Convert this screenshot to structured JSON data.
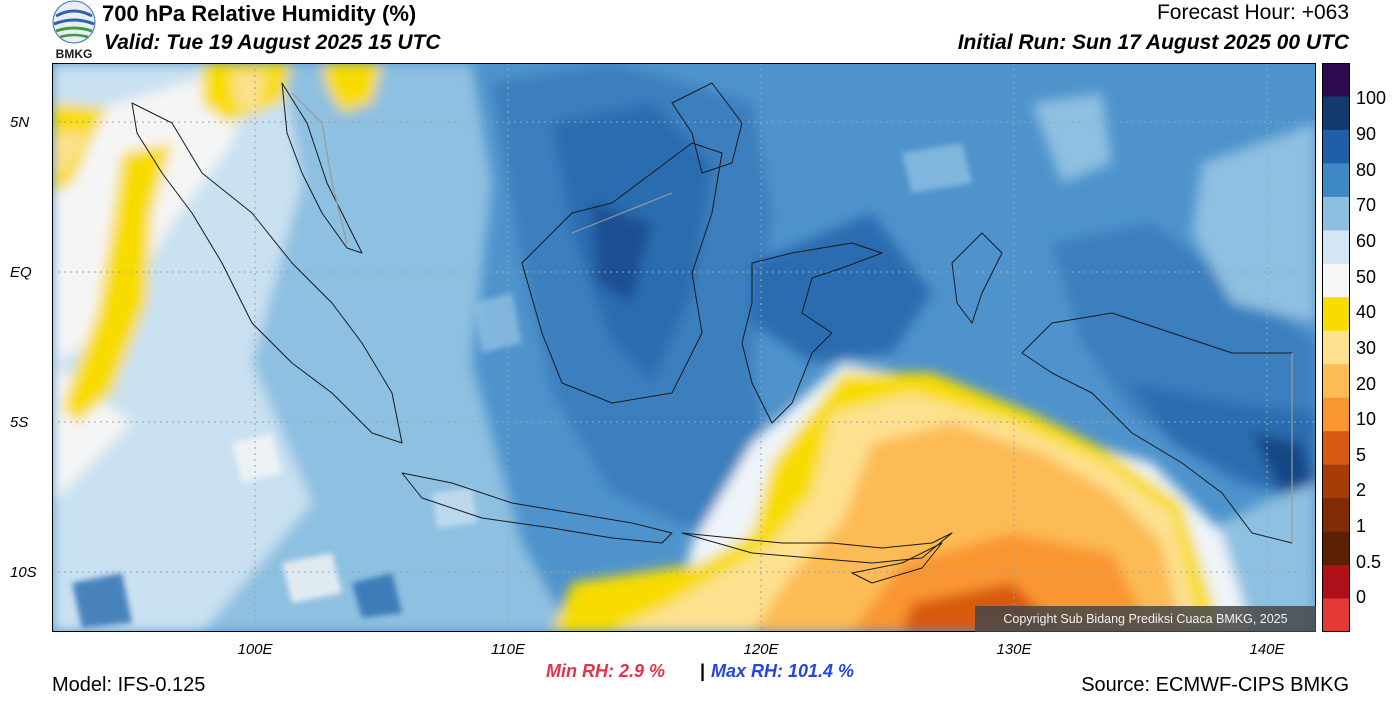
{
  "header": {
    "title": "700 hPa Relative Humidity (%)",
    "valid": "Valid: Tue 19 August 2025 15 UTC",
    "forecast_hour": "Forecast Hour: +063",
    "initial_run": "Initial Run: Sun 17 August 2025 00 UTC"
  },
  "logo": {
    "text": "BMKG",
    "icon": "bmkg-logo"
  },
  "map": {
    "latitude_labels": [
      "5N",
      "EQ",
      "5S",
      "10S"
    ],
    "longitude_labels": [
      "100E",
      "110E",
      "120E",
      "130E",
      "140E"
    ],
    "extent": {
      "lon": [
        92,
        142
      ],
      "lat": [
        -12,
        7
      ]
    },
    "gridlines": "dotted"
  },
  "colorbar": {
    "labels": [
      "100",
      "90",
      "80",
      "70",
      "60",
      "50",
      "40",
      "30",
      "20",
      "10",
      "5",
      "2",
      "1",
      "0.5",
      "0"
    ],
    "colors": [
      "#2e0a4e",
      "#123a6e",
      "#1f5fa8",
      "#3f88c6",
      "#8dbfe0",
      "#d4e6f3",
      "#f7f7f7",
      "#f8dc00",
      "#fde18f",
      "#fdbb55",
      "#f99630",
      "#d85a10",
      "#a83c08",
      "#802c06",
      "#5e2004",
      "#b0101a",
      "#e43a37"
    ]
  },
  "stats": {
    "min_rh": "Min RH:   2.9 %",
    "separator": "|",
    "max_rh": "Max RH: 101.4 %"
  },
  "footer": {
    "model": "Model: IFS-0.125",
    "source": "Source: ECMWF-CIPS BMKG",
    "copyright": "Copyright Sub Bidang Prediksi Cuaca BMKG, 2025"
  },
  "colors": {
    "min_rh": "#e0344a",
    "max_rh": "#2446e0"
  }
}
